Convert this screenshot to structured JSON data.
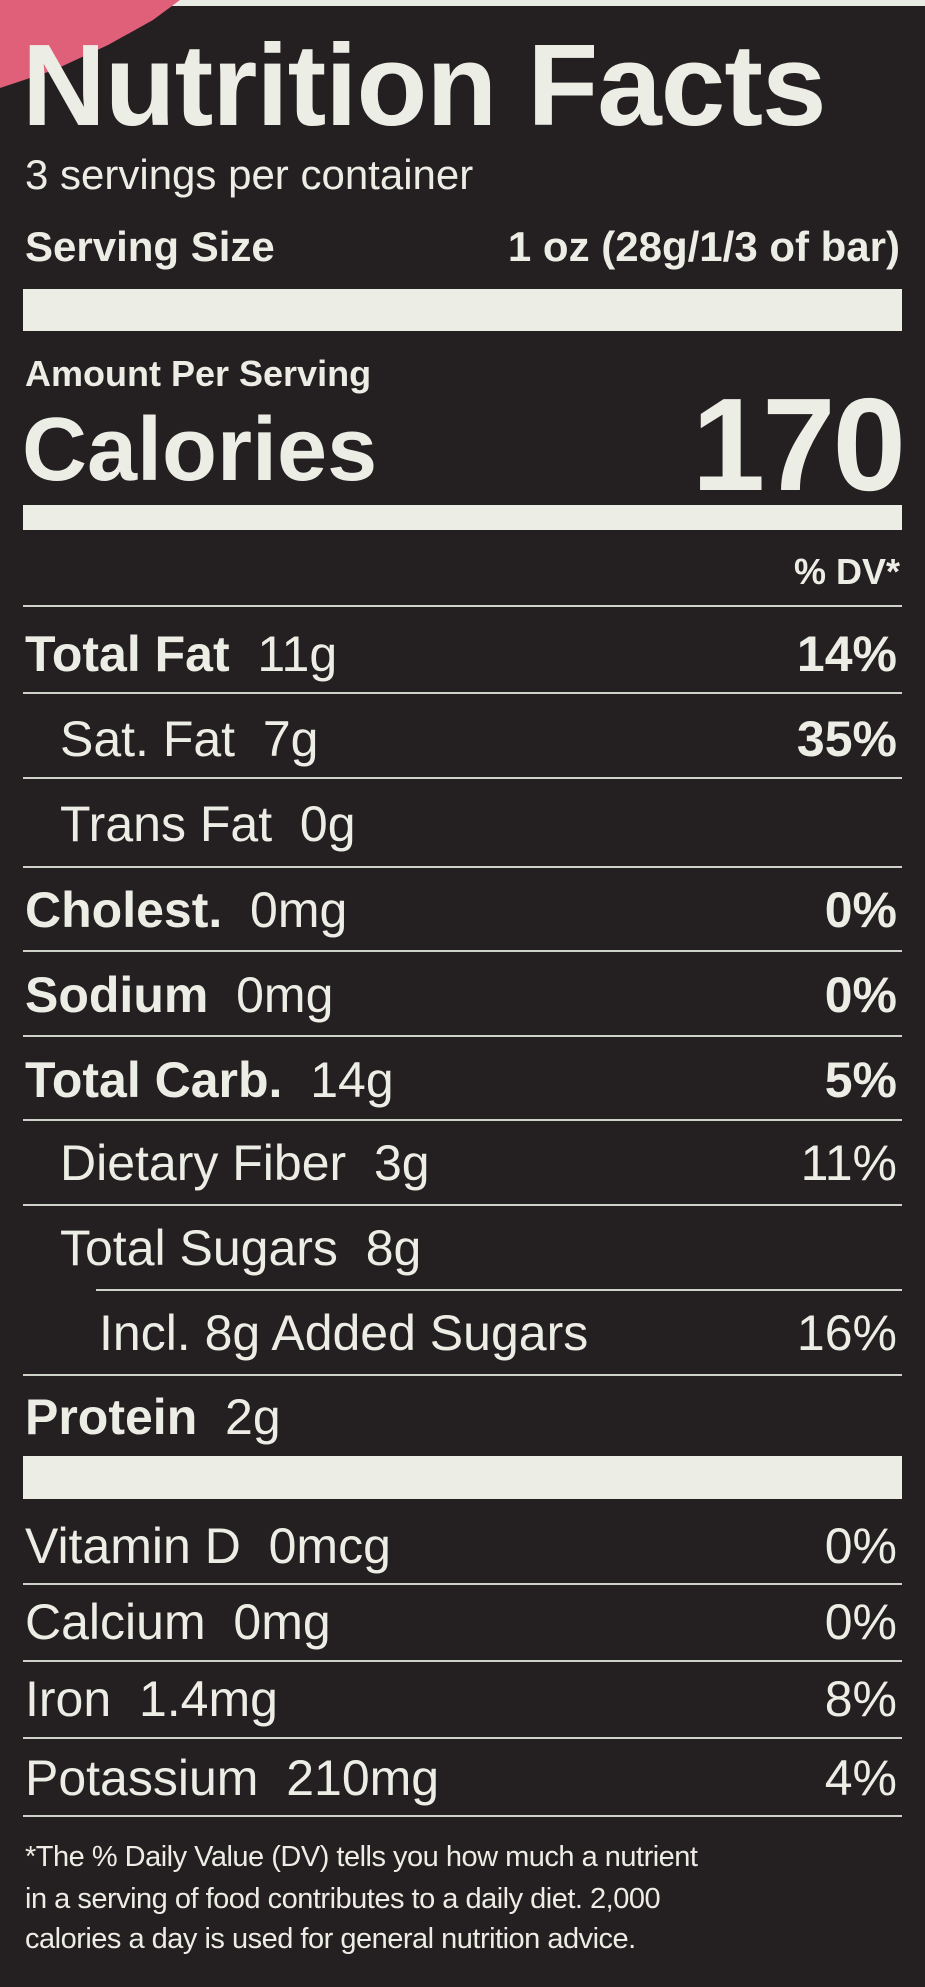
{
  "header": {
    "title": "Nutrition Facts",
    "servings_per_container": "3 servings per container",
    "serving_size_label": "Serving Size",
    "serving_size_value": "1 oz (28g/1/3 of bar)"
  },
  "calories": {
    "amount_per_serving": "Amount Per Serving",
    "label": "Calories",
    "value": "170"
  },
  "dv_header": "% DV*",
  "nutrients": [
    {
      "name": "Total Fat",
      "amount": "11g",
      "dv": "14%"
    },
    {
      "name": "Sat. Fat",
      "amount": "7g",
      "dv": "35%"
    },
    {
      "name": "Trans Fat",
      "amount": "0g",
      "dv": ""
    },
    {
      "name": "Cholest.",
      "amount": "0mg",
      "dv": "0%"
    },
    {
      "name": "Sodium",
      "amount": "0mg",
      "dv": "0%"
    },
    {
      "name": "Total Carb.",
      "amount": "14g",
      "dv": "5%"
    },
    {
      "name": "Dietary Fiber",
      "amount": "3g",
      "dv": "11%"
    },
    {
      "name": "Total Sugars",
      "amount": "8g",
      "dv": ""
    },
    {
      "name": "Incl. 8g Added Sugars",
      "amount": "",
      "dv": "16%"
    },
    {
      "name": "Protein",
      "amount": "2g",
      "dv": ""
    }
  ],
  "vitamins": [
    {
      "name": "Vitamin D",
      "amount": "0mcg",
      "dv": "0%"
    },
    {
      "name": "Calcium",
      "amount": "0mg",
      "dv": "0%"
    },
    {
      "name": "Iron",
      "amount": "1.4mg",
      "dv": "8%"
    },
    {
      "name": "Potassium",
      "amount": "210mg",
      "dv": "4%"
    }
  ],
  "footnote": [
    "*The % Daily Value (DV) tells you how much a nutrient",
    "in a serving of food contributes to a daily diet. 2,000",
    "calories a day is used for general nutrition advice."
  ],
  "colors": {
    "background": "#241f20",
    "text": "#eceee6",
    "packaging_accent": "#e0607a"
  }
}
